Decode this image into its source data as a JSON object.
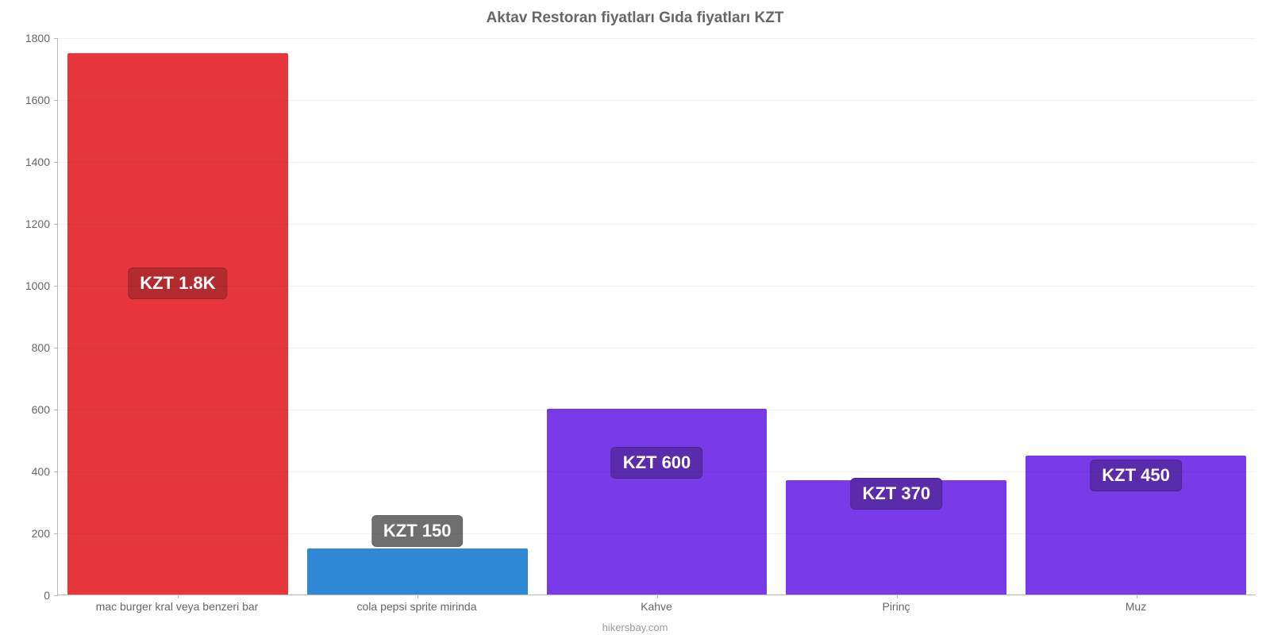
{
  "chart": {
    "type": "bar",
    "title": "Aktav Restoran fiyatları Gıda fiyatları KZT",
    "title_fontsize": 19,
    "title_color": "#666666",
    "footer": "hikersbay.com",
    "footer_fontsize": 13,
    "footer_color": "#999999",
    "background_color": "#ffffff",
    "axis_color": "#b8b8b8",
    "ylim": [
      0,
      1800
    ],
    "ytick_step": 200,
    "tick_fontsize": 14,
    "tick_color": "#666666",
    "bar_width_pct": 92,
    "value_label_fontsize": 22,
    "categories": [
      "mac burger kral veya benzeri bar",
      "cola pepsi sprite mirinda",
      "Kahve",
      "Pirinç",
      "Muz"
    ],
    "values": [
      1750,
      150,
      600,
      370,
      450
    ],
    "value_labels": [
      "KZT 1.8K",
      "KZT 150",
      "KZT 600",
      "KZT 370",
      "KZT 450"
    ],
    "bar_colors": [
      "#e8373c",
      "#2f89d6",
      "#793ae8",
      "#793ae8",
      "#793ae8"
    ],
    "label_bg_colors": [
      "#b42b2f",
      "#6f6f6f",
      "#5a2bab",
      "#5a2bab",
      "#5a2bab"
    ],
    "label_text_color": "#ffffff",
    "label_positions": [
      {
        "mode": "value",
        "at": 1000
      },
      {
        "mode": "value",
        "at": 200
      },
      {
        "mode": "value",
        "at": 420
      },
      {
        "mode": "value",
        "at": 320
      },
      {
        "mode": "value",
        "at": 380
      }
    ]
  }
}
